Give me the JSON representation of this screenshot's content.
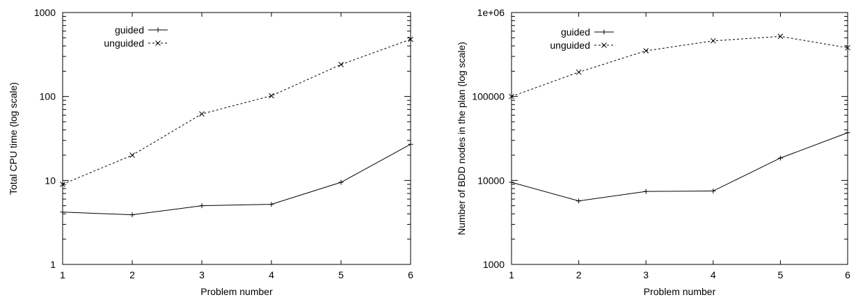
{
  "chart_data": [
    {
      "type": "line",
      "xlabel": "Problem number",
      "ylabel": "Total CPU time (log scale)",
      "yscale": "log",
      "x": [
        1,
        2,
        3,
        4,
        5,
        6
      ],
      "xticks": [
        "1",
        "2",
        "3",
        "4",
        "5",
        "6"
      ],
      "ylim": [
        1,
        1000
      ],
      "yticks": [
        {
          "value": 1,
          "label": "1"
        },
        {
          "value": 10,
          "label": "10"
        },
        {
          "value": 100,
          "label": "100"
        },
        {
          "value": 1000,
          "label": "1000"
        }
      ],
      "legend_position": "top-left",
      "series": [
        {
          "name": "guided",
          "marker": "+",
          "dash": "solid",
          "values": [
            4.2,
            3.9,
            5.0,
            5.2,
            9.5,
            27
          ]
        },
        {
          "name": "unguided",
          "marker": "x",
          "dash": "dashed",
          "values": [
            9,
            20,
            62,
            102,
            240,
            480
          ]
        }
      ]
    },
    {
      "type": "line",
      "xlabel": "Problem number",
      "ylabel": "Number of BDD nodes in the plan (log scale)",
      "yscale": "log",
      "x": [
        1,
        2,
        3,
        4,
        5,
        6
      ],
      "xticks": [
        "1",
        "2",
        "3",
        "4",
        "5",
        "6"
      ],
      "ylim": [
        1000,
        1000000
      ],
      "yticks": [
        {
          "value": 1000,
          "label": "1000"
        },
        {
          "value": 10000,
          "label": "10000"
        },
        {
          "value": 100000,
          "label": "100000"
        },
        {
          "value": 1000000,
          "label": "1e+06"
        }
      ],
      "legend_position": "top-left",
      "series": [
        {
          "name": "guided",
          "marker": "+",
          "dash": "solid",
          "values": [
            9500,
            5700,
            7400,
            7500,
            18500,
            37000
          ]
        },
        {
          "name": "unguided",
          "marker": "x",
          "dash": "dashed",
          "values": [
            100000,
            195000,
            350000,
            460000,
            520000,
            380000
          ]
        }
      ]
    }
  ]
}
